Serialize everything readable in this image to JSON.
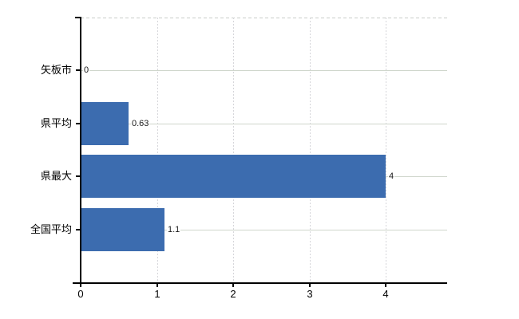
{
  "chart_data": {
    "type": "bar",
    "orientation": "horizontal",
    "title": "",
    "categories": [
      "矢板市",
      "県平均",
      "県最大",
      "全国平均"
    ],
    "values": [
      0,
      0.63,
      4,
      1.1
    ],
    "value_labels": [
      "0",
      "0.63",
      "4",
      "1.1"
    ],
    "x_tick_labels": [
      "0",
      "1",
      "2",
      "3",
      "4"
    ],
    "x_tick_values": [
      0,
      1,
      2,
      3,
      4
    ],
    "xlim": [
      0,
      4.8
    ],
    "grid": {
      "horizontal_rows": true,
      "vertical_dashed": true,
      "top_border_dashed": true
    },
    "legend": "none",
    "colors": {
      "bar": "#3c6caf",
      "h_grid": "#cfd6cc",
      "v_grid": "#d6d6da",
      "top_border": "#c9cdc9",
      "axis": "#000000",
      "label_text": "#1a1a1a"
    }
  }
}
